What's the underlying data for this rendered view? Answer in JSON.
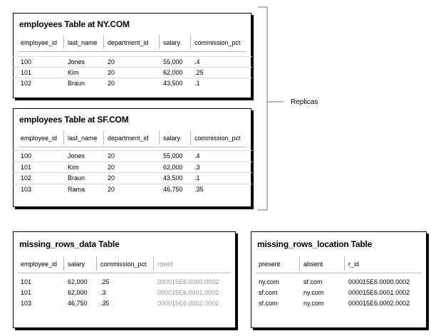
{
  "tables": [
    {
      "title": "employees Table at NY.COM",
      "columns": [
        "employee_id",
        "last_name",
        "department_id",
        "salary",
        "commission_pct"
      ],
      "rows": [
        [
          "100",
          "Jones",
          "20",
          "55,000",
          ".4"
        ],
        [
          "101",
          "Kim",
          "20",
          "62,000",
          ".25"
        ],
        [
          "102",
          "Braun",
          "20",
          "43,500",
          ".1"
        ]
      ]
    },
    {
      "title": "employees Table at SF.COM",
      "columns": [
        "employee_id",
        "last_name",
        "department_id",
        "salary",
        "commission_pct"
      ],
      "rows": [
        [
          "100",
          "Jones",
          "20",
          "55,000",
          ".4"
        ],
        [
          "101",
          "Kim",
          "20",
          "62,000",
          ".3"
        ],
        [
          "102",
          "Braun",
          "20",
          "43,500",
          ".1"
        ],
        [
          "103",
          "Rama",
          "20",
          "46,750",
          ".35"
        ]
      ]
    },
    {
      "title": "missing_rows_data Table",
      "columns": [
        "employee_id",
        "salary",
        "commission_pct",
        "rowid"
      ],
      "rows": [
        [
          "101",
          "62,000",
          ".25",
          "000015E6.0000.0002"
        ],
        [
          "101",
          "62,000",
          ".3",
          "000015E6.0001.0002"
        ],
        [
          "103",
          "46,750",
          ".35",
          "000015E6.0002.0002"
        ]
      ]
    },
    {
      "title": "missing_rows_location Table",
      "columns": [
        "present",
        "absent",
        "r_id"
      ],
      "rows": [
        [
          "ny.com",
          "sf.com",
          "000015E6.0000.0002"
        ],
        [
          "sf.com",
          "ny.com",
          "000015E6.0001.0002"
        ],
        [
          "sf.com",
          "ny.com",
          "000015E6.0002.0002"
        ]
      ]
    }
  ],
  "bracket_label": "Replicas"
}
